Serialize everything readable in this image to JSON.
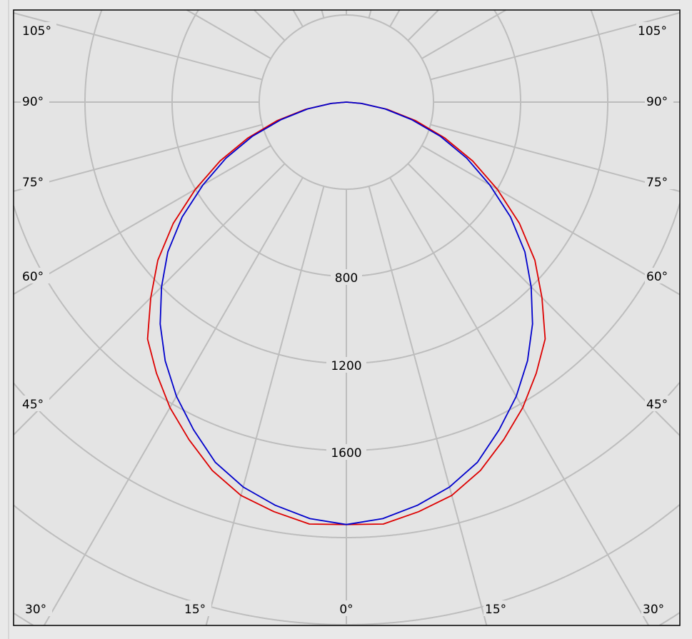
{
  "chart_data": {
    "type": "polar-line",
    "title": "",
    "angular_axis": {
      "zero_direction": "down",
      "tick_labels_left": [
        "105°",
        "90°",
        "75°",
        "60°",
        "45°",
        "30°",
        "15°"
      ],
      "tick_label_center": "0°",
      "tick_labels_right": [
        "15°",
        "30°",
        "45°",
        "60°",
        "75°",
        "90°",
        "105°"
      ],
      "grid_step_deg": 15
    },
    "radial_axis": {
      "tick_labels": [
        "800",
        "1200",
        "1600"
      ],
      "ring_step": 400,
      "range": [
        0,
        2800
      ]
    },
    "grid": true,
    "angles_deg": [
      0,
      5,
      10,
      15,
      20,
      25,
      30,
      35,
      40,
      45,
      50,
      55,
      60,
      65,
      70,
      75,
      80,
      85,
      90
    ],
    "series": [
      {
        "color": "#dd0000",
        "symmetric": true,
        "values": [
          1940,
          1945,
          1910,
          1870,
          1800,
          1710,
          1620,
          1520,
          1420,
          1270,
          1130,
          970,
          800,
          640,
          480,
          330,
          190,
          70,
          0
        ]
      },
      {
        "color": "#0000cc",
        "symmetric": true,
        "values": [
          1940,
          1920,
          1880,
          1830,
          1760,
          1660,
          1560,
          1450,
          1330,
          1200,
          1070,
          920,
          760,
          610,
          460,
          310,
          180,
          70,
          0
        ]
      }
    ],
    "colors": {
      "grid": "#bdbdbd",
      "background": "#e4e4e4",
      "frame": "#000000"
    }
  }
}
